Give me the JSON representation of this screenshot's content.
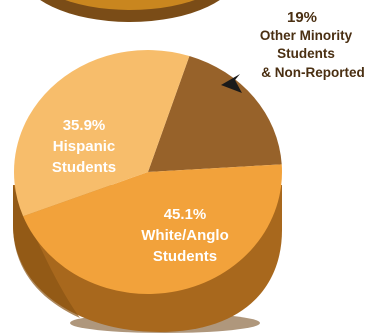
{
  "chart_data": {
    "type": "pie",
    "title": "",
    "slices": [
      {
        "label": "Other Minority Students & Non-Reported",
        "value": 19.0,
        "value_label": "19%",
        "color": "#97622a"
      },
      {
        "label": "White/Anglo Students",
        "value": 45.1,
        "value_label": "45.1%",
        "color": "#f2a23b"
      },
      {
        "label": "Hispanic Students",
        "value": 35.9,
        "value_label": "35.9%",
        "color": "#f7bd6b"
      }
    ],
    "label_lines": {
      "minority": [
        "Other Minority",
        "Students",
        "& Non-Reported"
      ],
      "white": [
        "White/Anglo",
        "Students"
      ],
      "hispanic": [
        "Hispanic",
        "Students"
      ]
    },
    "legend": "none"
  },
  "colors": {
    "slice_shadow": "#6e4210",
    "rim": "#a8681d",
    "top_pie_body": "#c9861f",
    "background": "#ffffff"
  }
}
